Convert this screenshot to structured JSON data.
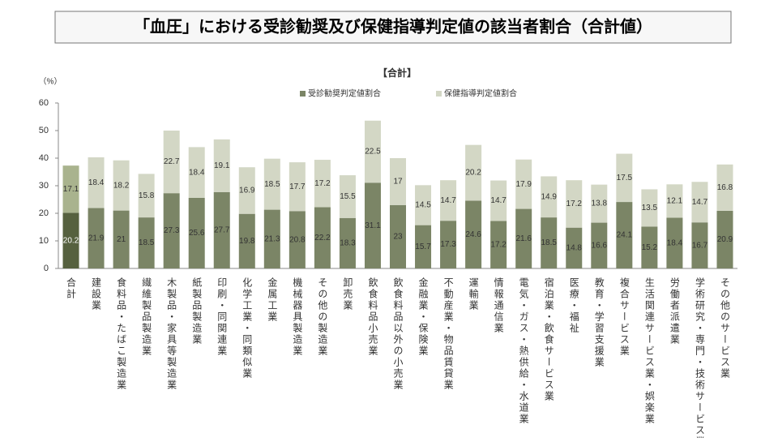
{
  "chart_data": {
    "type": "stacked-bar",
    "title": "「血圧」における受診勧奨及び保健指導判定値の該当者割合（合計値）",
    "subtitle": "【合計】",
    "y_label": "（%）",
    "categories": [
      "合計",
      "建設業",
      "食料品・たばこ製造業",
      "繊維製品製造業",
      "木製品・家具等製造業",
      "紙製品製造業",
      "印刷・同関連業",
      "化学工業・同類似業",
      "金属工業",
      "機械器具製造業",
      "その他の製造業",
      "卸売業",
      "飲食料品小売業",
      "飲食料品以外の小売業",
      "金融業・保険業",
      "不動産業・物品賃貸業",
      "運輸業",
      "情報通信業",
      "電気・ガス・熱供給・水道業",
      "宿泊業・飲食サービス業",
      "医療・福祉",
      "教育・学習支援業",
      "複合サービス業",
      "生活関連サービス業・娯楽業",
      "労働者派遣業",
      "学術研究・専門・技術サービス業",
      "その他のサービス業"
    ],
    "highlight": "合計",
    "series": [
      {
        "name": "受診勧奨判定値割合",
        "color": "#7b8566",
        "highlight_color": "#56613f",
        "values": [
          20.2,
          21.9,
          21.0,
          18.5,
          27.3,
          25.6,
          27.7,
          19.8,
          21.3,
          20.8,
          22.2,
          18.3,
          31.1,
          23.0,
          15.7,
          17.3,
          24.6,
          17.2,
          21.6,
          18.5,
          14.8,
          16.6,
          24.1,
          15.2,
          18.4,
          16.7,
          20.9
        ]
      },
      {
        "name": "保健指導判定値割合",
        "color": "#d3d7c5",
        "highlight_color": "#a9b38e",
        "values": [
          17.1,
          18.4,
          18.2,
          15.8,
          22.7,
          18.4,
          19.1,
          16.9,
          18.5,
          17.7,
          17.2,
          15.5,
          22.5,
          17.0,
          14.5,
          14.7,
          20.2,
          14.7,
          17.9,
          14.9,
          17.2,
          13.8,
          17.5,
          13.5,
          12.1,
          14.7,
          16.8
        ]
      }
    ],
    "ylim": [
      0,
      60
    ],
    "yticks": [
      0,
      10,
      20,
      30,
      40,
      50,
      60
    ],
    "grid": false
  }
}
